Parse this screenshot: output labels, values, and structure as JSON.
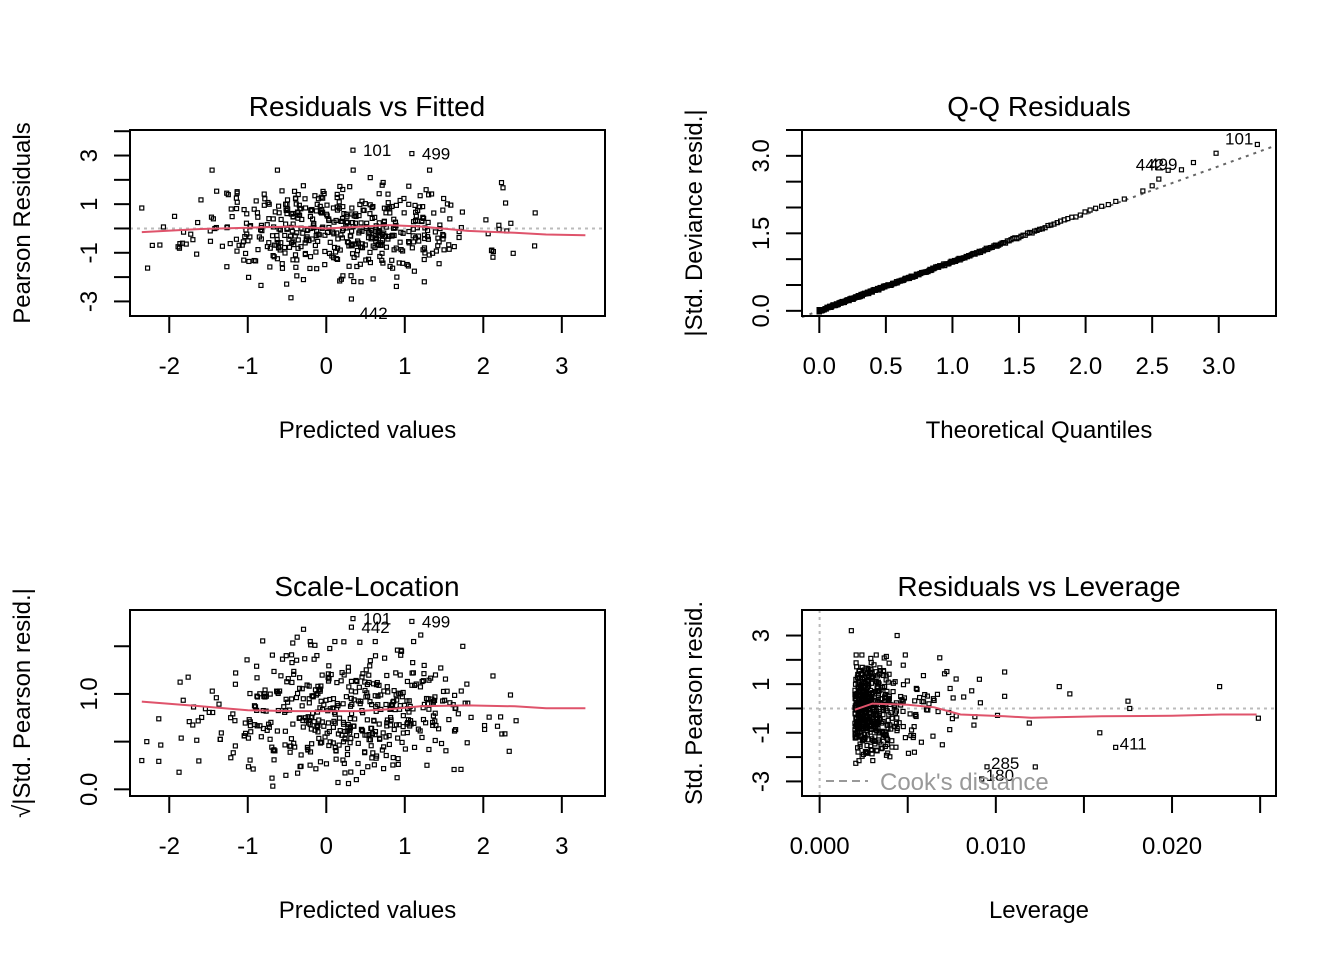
{
  "chart_data": [
    {
      "id": "resid-fitted",
      "type": "scatter",
      "title": "Residuals vs Fitted",
      "xlabel": "Predicted values",
      "ylabel": "Pearson Residuals",
      "xlim": [
        -2.5,
        3.55
      ],
      "ylim": [
        -3.6,
        4.05
      ],
      "xticks": [
        -2,
        -1,
        0,
        1,
        2,
        3
      ],
      "xtick_labels": [
        "-2",
        "-1",
        "0",
        "1",
        "2",
        "3"
      ],
      "yticks": [
        -4,
        -3,
        -2,
        -1,
        0,
        1,
        2,
        3,
        4
      ],
      "ytick_labels": [
        "",
        "-3",
        "",
        "-1",
        "",
        "1",
        "",
        "3",
        ""
      ],
      "ref_line": {
        "y": 0,
        "style": "dotted",
        "color": "#bbbbbb"
      },
      "smooth_color": "#df536b",
      "smooth": {
        "x": [
          -2.35,
          -1.6,
          -1.0,
          -0.4,
          0.0,
          0.3,
          0.8,
          1.2,
          1.8,
          2.4,
          2.8,
          3.3
        ],
        "y": [
          -0.15,
          -0.02,
          0.03,
          0.08,
          0.0,
          0.05,
          0.14,
          0.08,
          -0.1,
          -0.18,
          -0.25,
          -0.28
        ]
      },
      "labeled_points": [
        {
          "label": "101",
          "x": 0.34,
          "y": 3.22
        },
        {
          "label": "499",
          "x": 1.09,
          "y": 3.08
        },
        {
          "label": "442",
          "x": 0.32,
          "y": -2.9
        }
      ],
      "generator": {
        "n": 500,
        "seed": 11,
        "x_mean": 0.15,
        "x_sd": 0.9,
        "y_sd": 0.95
      }
    },
    {
      "id": "qq",
      "type": "scatter",
      "title": "Q-Q Residuals",
      "xlabel": "Theoretical Quantiles",
      "ylabel": "|Std. Deviance resid.|",
      "xlim": [
        -0.13,
        3.43
      ],
      "ylim": [
        -0.1,
        3.5
      ],
      "xticks": [
        0,
        0.5,
        1,
        1.5,
        2,
        2.5,
        3
      ],
      "xtick_labels": [
        "0.0",
        "0.5",
        "1.0",
        "1.5",
        "2.0",
        "2.5",
        "3.0"
      ],
      "yticks": [
        0,
        0.5,
        1,
        1.5,
        2,
        2.5,
        3,
        3.5
      ],
      "ytick_labels": [
        "0.0",
        "",
        "",
        "1.5",
        "",
        "",
        "3.0",
        ""
      ],
      "ref_line": {
        "x": [
          -0.13,
          3.43
        ],
        "y": [
          -0.12,
          3.2
        ],
        "style": "dotted",
        "color": "#666666"
      },
      "labeled_points": [
        {
          "label": "442",
          "x": 2.62,
          "y": 2.72
        },
        {
          "label": "499",
          "x": 2.72,
          "y": 2.73
        },
        {
          "label": "101",
          "x": 3.29,
          "y": 3.22
        }
      ],
      "extra_points": [
        [
          2.43,
          2.32
        ],
        [
          2.5,
          2.42
        ],
        [
          2.55,
          2.55
        ],
        [
          2.81,
          2.87
        ],
        [
          2.98,
          3.05
        ]
      ],
      "generator": {
        "n": 495,
        "seed": 5
      }
    },
    {
      "id": "scale-location",
      "type": "scatter",
      "title": "Scale-Location",
      "xlabel": "Predicted values",
      "ylabel": "√|Std. Pearson resid.|",
      "xlim": [
        -2.5,
        3.55
      ],
      "ylim": [
        -0.07,
        1.88
      ],
      "xticks": [
        -2,
        -1,
        0,
        1,
        2,
        3
      ],
      "xtick_labels": [
        "-2",
        "-1",
        "0",
        "1",
        "2",
        "3"
      ],
      "yticks": [
        0,
        0.5,
        1,
        1.5
      ],
      "ytick_labels": [
        "0.0",
        "",
        "1.0",
        ""
      ],
      "smooth_color": "#df536b",
      "smooth": {
        "x": [
          -2.35,
          -1.6,
          -1.0,
          -0.4,
          0.0,
          0.4,
          0.8,
          1.2,
          1.8,
          2.4,
          2.8,
          3.3
        ],
        "y": [
          0.92,
          0.87,
          0.83,
          0.82,
          0.82,
          0.82,
          0.84,
          0.87,
          0.88,
          0.87,
          0.85,
          0.85
        ]
      },
      "labeled_points": [
        {
          "label": "101",
          "x": 0.34,
          "y": 1.79
        },
        {
          "label": "499",
          "x": 1.09,
          "y": 1.76
        },
        {
          "label": "442",
          "x": 0.32,
          "y": 1.7
        }
      ],
      "generator": {
        "n": 500,
        "seed": 23,
        "x_mean": 0.15,
        "x_sd": 0.9
      }
    },
    {
      "id": "resid-leverage",
      "type": "scatter",
      "title": "Residuals vs Leverage",
      "xlabel": "Leverage",
      "ylabel": "Std. Pearson resid.",
      "xlim": [
        -0.001,
        0.0259
      ],
      "ylim": [
        -3.6,
        4.05
      ],
      "xticks": [
        0,
        0.005,
        0.01,
        0.015,
        0.02,
        0.025
      ],
      "xtick_labels": [
        "0.000",
        "",
        "0.010",
        "",
        "0.020",
        ""
      ],
      "yticks": [
        -3,
        -2,
        -1,
        0,
        1,
        2,
        3
      ],
      "ytick_labels": [
        "-3",
        "",
        "-1",
        "",
        "1",
        "",
        "3"
      ],
      "ref_lines": [
        {
          "y": 0,
          "style": "dotted",
          "color": "#bbbbbb"
        },
        {
          "x": 0,
          "style": "dotted",
          "color": "#bbbbbb"
        }
      ],
      "smooth_color": "#df536b",
      "smooth": {
        "x": [
          0.002,
          0.003,
          0.005,
          0.0065,
          0.008,
          0.0105,
          0.012,
          0.016,
          0.02,
          0.0228,
          0.0248
        ],
        "y": [
          -0.05,
          0.2,
          0.15,
          0.05,
          -0.25,
          -0.32,
          -0.38,
          -0.32,
          -0.3,
          -0.25,
          -0.25
        ]
      },
      "labeled_points": [
        {
          "label": "285",
          "x": 0.0095,
          "y": -2.4
        },
        {
          "label": "180",
          "x": 0.0092,
          "y": -2.9
        },
        {
          "label": "411",
          "x": 0.0168,
          "y": -1.6
        }
      ],
      "extra_points": [
        [
          0.0018,
          3.2
        ],
        [
          0.0044,
          3.0
        ],
        [
          0.0175,
          0.3
        ],
        [
          0.0176,
          0.0
        ],
        [
          0.0227,
          0.9
        ],
        [
          0.0249,
          -0.4
        ],
        [
          0.0159,
          -1.0
        ],
        [
          0.0136,
          0.9
        ],
        [
          0.0142,
          0.6
        ],
        [
          0.0119,
          -0.6
        ],
        [
          0.0105,
          1.5
        ],
        [
          0.0105,
          0.5
        ]
      ],
      "cooks_legend": "Cook's distance",
      "generator": {
        "n": 490,
        "seed": 37
      }
    }
  ]
}
